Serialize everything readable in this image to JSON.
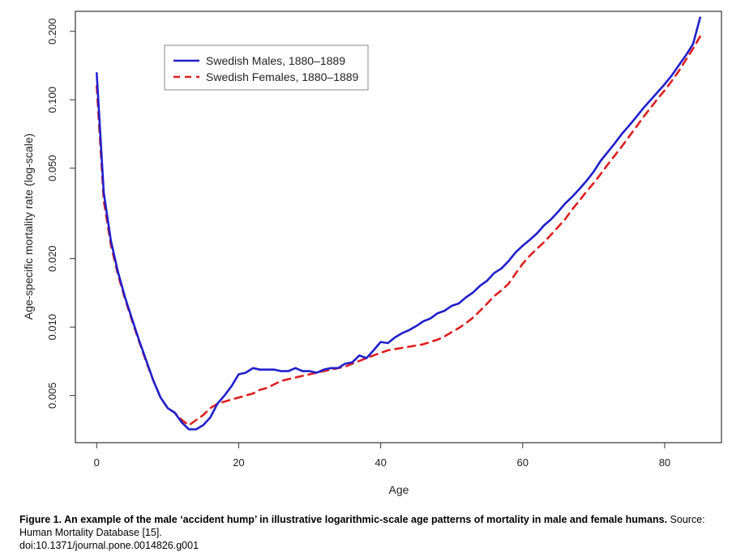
{
  "chart_data": {
    "type": "line",
    "title": "",
    "xlabel": "Age",
    "ylabel": "Age-specific mortality rate (log-scale)",
    "log_y": true,
    "xlim": [
      -3,
      88
    ],
    "ylim": [
      0.0031,
      0.245
    ],
    "x_ticks": [
      0,
      20,
      40,
      60,
      80
    ],
    "y_ticks": [
      0.005,
      0.01,
      0.02,
      0.05,
      0.1,
      0.2
    ],
    "y_tick_labels": [
      "0.005",
      "0.010",
      "0.020",
      "0.050",
      "0.100",
      "0.200"
    ],
    "grid": false,
    "legend_position": "top-left",
    "x": [
      0,
      1,
      2,
      3,
      4,
      5,
      6,
      7,
      8,
      9,
      10,
      11,
      12,
      13,
      14,
      15,
      16,
      17,
      18,
      19,
      20,
      21,
      22,
      23,
      24,
      25,
      26,
      27,
      28,
      29,
      30,
      31,
      32,
      33,
      34,
      35,
      36,
      37,
      38,
      39,
      40,
      41,
      42,
      43,
      44,
      45,
      46,
      47,
      48,
      49,
      50,
      51,
      52,
      53,
      54,
      55,
      56,
      57,
      58,
      59,
      60,
      61,
      62,
      63,
      64,
      65,
      66,
      67,
      68,
      69,
      70,
      71,
      72,
      73,
      74,
      75,
      76,
      77,
      78,
      79,
      80,
      81,
      82,
      83,
      84,
      85
    ],
    "series": [
      {
        "name": "Swedish Males, 1880–1889",
        "color": "#1f1fcc",
        "style": "solid",
        "values": [
          0.131,
          0.039,
          0.024,
          0.0175,
          0.0135,
          0.0108,
          0.0087,
          0.0071,
          0.0058,
          0.0049,
          0.0044,
          0.0042,
          0.0038,
          0.00355,
          0.00355,
          0.0037,
          0.004,
          0.0046,
          0.005,
          0.0055,
          0.0062,
          0.0063,
          0.0066,
          0.0065,
          0.0065,
          0.0065,
          0.0064,
          0.0064,
          0.0066,
          0.0064,
          0.0064,
          0.0063,
          0.0065,
          0.0066,
          0.0066,
          0.0069,
          0.007,
          0.0075,
          0.0073,
          0.0079,
          0.0086,
          0.0085,
          0.009,
          0.0094,
          0.0097,
          0.0101,
          0.0106,
          0.0109,
          0.0115,
          0.0118,
          0.0124,
          0.0127,
          0.0135,
          0.0142,
          0.0152,
          0.016,
          0.0173,
          0.0181,
          0.0195,
          0.0213,
          0.0228,
          0.0242,
          0.0258,
          0.028,
          0.0298,
          0.0322,
          0.035,
          0.0375,
          0.0405,
          0.044,
          0.0483,
          0.054,
          0.059,
          0.0645,
          0.071,
          0.077,
          0.084,
          0.092,
          0.0995,
          0.108,
          0.117,
          0.128,
          0.142,
          0.157,
          0.176,
          0.23
        ]
      },
      {
        "name": "Swedish Females, 1880–1889",
        "color": "#dd1f1f",
        "style": "dashed",
        "values": [
          0.115,
          0.036,
          0.023,
          0.017,
          0.0133,
          0.0106,
          0.0086,
          0.007,
          0.0058,
          0.0049,
          0.0044,
          0.0042,
          0.0039,
          0.0037,
          0.0039,
          0.0041,
          0.0044,
          0.0046,
          0.0047,
          0.0048,
          0.0049,
          0.005,
          0.0051,
          0.0053,
          0.0054,
          0.0056,
          0.0058,
          0.0059,
          0.006,
          0.0061,
          0.0062,
          0.0063,
          0.0064,
          0.0065,
          0.0066,
          0.0067,
          0.0069,
          0.0071,
          0.0073,
          0.0075,
          0.0077,
          0.0079,
          0.008,
          0.0081,
          0.0082,
          0.0083,
          0.0084,
          0.0086,
          0.0088,
          0.0091,
          0.0095,
          0.0099,
          0.0104,
          0.011,
          0.0118,
          0.0127,
          0.0137,
          0.0145,
          0.0155,
          0.0172,
          0.019,
          0.0206,
          0.0221,
          0.0236,
          0.0255,
          0.0276,
          0.0299,
          0.033,
          0.036,
          0.0395,
          0.043,
          0.0472,
          0.052,
          0.057,
          0.0625,
          0.069,
          0.076,
          0.084,
          0.092,
          0.101,
          0.11,
          0.121,
          0.134,
          0.15,
          0.168,
          0.19
        ]
      }
    ]
  },
  "caption": {
    "bold": "Figure 1. An example of the male ‘accident hump’ in illustrative logarithmic-scale age patterns of mortality in male and female humans.",
    "rest": " Source: Human Mortality Database [15].",
    "doi": "doi:10.1371/journal.pone.0014826.g001"
  }
}
